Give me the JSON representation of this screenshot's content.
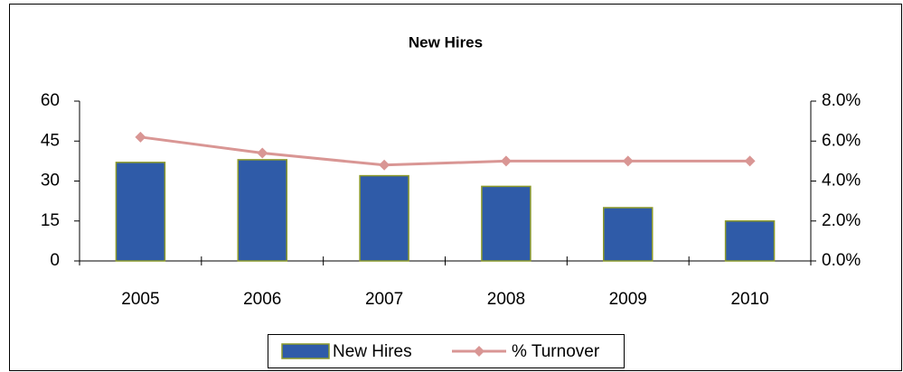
{
  "chart_data": {
    "type": "bar_line",
    "title": "New Hires",
    "categories": [
      "2005",
      "2006",
      "2007",
      "2008",
      "2009",
      "2010"
    ],
    "series": [
      {
        "name": "New Hires",
        "type": "bar",
        "color": "#2f5ba8",
        "values": [
          37,
          38,
          32,
          28,
          20,
          15
        ]
      },
      {
        "name": "% Turnover",
        "type": "line",
        "axis": "y2",
        "color": "#d99694",
        "values": [
          6.2,
          5.4,
          4.8,
          5.0,
          5.0,
          5.0
        ]
      }
    ],
    "ylim": [
      0,
      60
    ],
    "yticks": [
      0,
      15,
      30,
      45,
      60
    ],
    "y2lim": [
      0,
      8
    ],
    "y2ticks": [
      {
        "value": 0,
        "label": "0.0%"
      },
      {
        "value": 2,
        "label": "2.0%"
      },
      {
        "value": 4,
        "label": "4.0%"
      },
      {
        "value": 6,
        "label": "6.0%"
      },
      {
        "value": 8,
        "label": "8.0%"
      }
    ],
    "legend": "bottom"
  }
}
